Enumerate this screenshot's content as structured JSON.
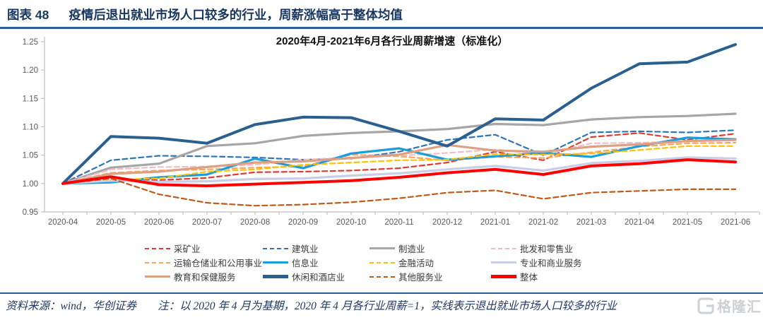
{
  "header": {
    "figure_label": "图表 48",
    "title": "疫情后退出就业市场人口较多的行业，周薪涨幅高于整体均值"
  },
  "footer": {
    "source": "资料来源：wind，华创证券",
    "note": "注：以 2020 年 4 月为基期，2020 年 4 月各行业周薪=1，实线表示退出就业市场人口较多的行业",
    "watermark": "格隆汇"
  },
  "colors": {
    "header_navy": "#17375e",
    "rule_blue": "#2f5f9e",
    "axis_gray": "#bfbfbf",
    "tick_label_gray": "#595959"
  },
  "chart_data": {
    "type": "line",
    "title": "2020年4月-2021年6月各行业周薪增速（标准化）",
    "x": [
      "2020-04",
      "2020-05",
      "2020-06",
      "2020-07",
      "2020-08",
      "2020-09",
      "2020-10",
      "2020-11",
      "2020-12",
      "2021-01",
      "2021-02",
      "2021-03",
      "2021-04",
      "2021-05",
      "2021-06"
    ],
    "ylim": [
      0.95,
      1.25
    ],
    "yticks": [
      0.95,
      1.0,
      1.05,
      1.1,
      1.15,
      1.2,
      1.25
    ],
    "grid": false,
    "legend_position": "bottom",
    "series": [
      {
        "name": "采矿业",
        "color": "#df3b32",
        "dash": true,
        "width": 2.2,
        "values": [
          1.0,
          1.007,
          1.006,
          1.01,
          1.02,
          1.021,
          1.023,
          1.027,
          1.037,
          1.056,
          1.041,
          1.082,
          1.089,
          1.077,
          1.088
        ]
      },
      {
        "name": "建筑业",
        "color": "#2e75b6",
        "dash": true,
        "width": 2.2,
        "values": [
          1.0,
          1.041,
          1.049,
          1.048,
          1.046,
          1.042,
          1.044,
          1.056,
          1.077,
          1.086,
          1.05,
          1.09,
          1.092,
          1.09,
          1.094
        ]
      },
      {
        "name": "制造业",
        "color": "#a6a6a6",
        "dash": false,
        "width": 3.2,
        "values": [
          1.0,
          1.028,
          1.035,
          1.066,
          1.071,
          1.084,
          1.089,
          1.092,
          1.096,
          1.105,
          1.103,
          1.113,
          1.117,
          1.119,
          1.123
        ]
      },
      {
        "name": "批发和零售业",
        "color": "#f2bec5",
        "dash": true,
        "width": 2.2,
        "values": [
          1.0,
          1.025,
          1.029,
          1.03,
          1.033,
          1.042,
          1.046,
          1.049,
          1.054,
          1.06,
          1.051,
          1.071,
          1.072,
          1.074,
          1.076
        ]
      },
      {
        "name": "运输仓储业和公用事业",
        "color": "#f9a65b",
        "dash": true,
        "width": 2.2,
        "values": [
          1.0,
          1.019,
          1.023,
          1.025,
          1.028,
          1.03,
          1.051,
          1.048,
          1.041,
          1.047,
          1.045,
          1.055,
          1.065,
          1.071,
          1.072
        ]
      },
      {
        "name": "信息业",
        "color": "#1b9cdc",
        "dash": false,
        "width": 3.2,
        "values": [
          1.0,
          1.002,
          1.011,
          1.016,
          1.044,
          1.027,
          1.053,
          1.062,
          1.042,
          1.048,
          1.054,
          1.047,
          1.066,
          1.081,
          1.078
        ]
      },
      {
        "name": "金融活动",
        "color": "#ffc000",
        "dash": true,
        "width": 2.2,
        "values": [
          1.0,
          1.007,
          1.009,
          1.021,
          1.025,
          1.033,
          1.037,
          1.041,
          1.042,
          1.052,
          1.051,
          1.053,
          1.059,
          1.066,
          1.066
        ]
      },
      {
        "name": "专业和商业服务",
        "color": "#c8cee7",
        "dash": false,
        "width": 3.2,
        "values": [
          1.0,
          1.005,
          1.003,
          1.004,
          1.008,
          1.009,
          1.014,
          1.018,
          1.025,
          1.031,
          1.023,
          1.036,
          1.04,
          1.046,
          1.044
        ]
      },
      {
        "name": "教育和保健服务",
        "color": "#dba184",
        "dash": false,
        "width": 3.2,
        "values": [
          1.0,
          1.017,
          1.021,
          1.029,
          1.037,
          1.039,
          1.045,
          1.051,
          1.068,
          1.058,
          1.056,
          1.065,
          1.069,
          1.075,
          1.077
        ]
      },
      {
        "name": "休闲和酒店业",
        "color": "#2a608f",
        "dash": false,
        "width": 4,
        "values": [
          1.0,
          1.083,
          1.08,
          1.071,
          1.104,
          1.117,
          1.116,
          1.092,
          1.066,
          1.114,
          1.112,
          1.168,
          1.211,
          1.214,
          1.245
        ]
      },
      {
        "name": "其他服务业",
        "color": "#bf5b16",
        "dash": true,
        "width": 2.2,
        "values": [
          1.0,
          1.009,
          0.981,
          0.966,
          0.961,
          0.963,
          0.967,
          0.974,
          0.984,
          0.988,
          0.973,
          0.984,
          0.987,
          0.99,
          0.99
        ]
      },
      {
        "name": "整体",
        "color": "#ff0000",
        "dash": false,
        "width": 4,
        "values": [
          1.0,
          1.012,
          0.998,
          0.996,
          0.999,
          1.002,
          1.005,
          1.011,
          1.019,
          1.025,
          1.016,
          1.031,
          1.035,
          1.042,
          1.038
        ]
      }
    ]
  }
}
